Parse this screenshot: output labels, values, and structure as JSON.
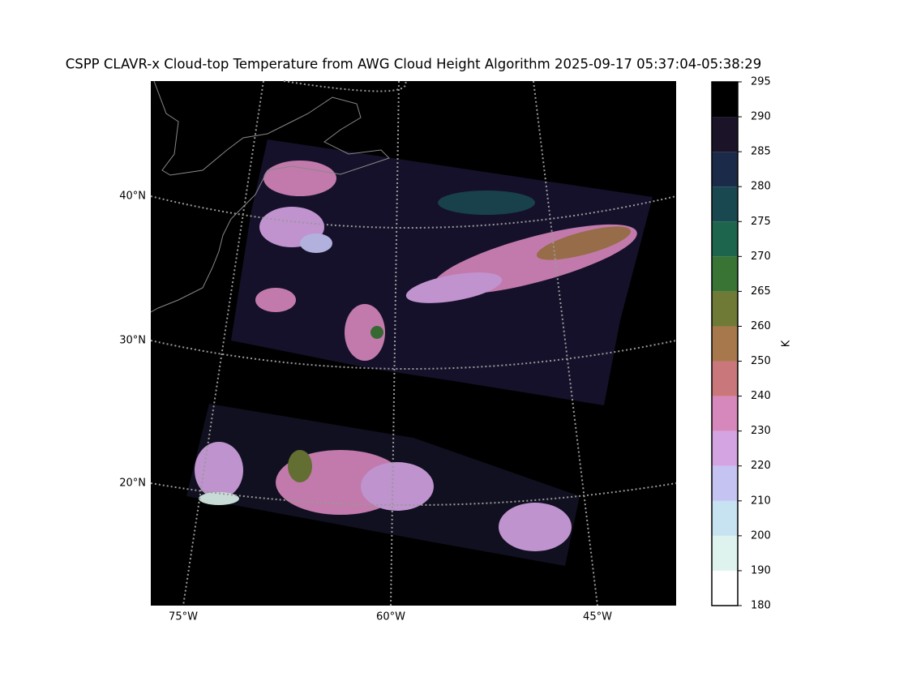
{
  "map": {
    "title": "CSPP CLAVR-x Cloud-top Temperature from AWG Cloud Height Algorithm 2025-09-17 05:37:04-05:38:29",
    "lat_labels": [
      "40°N",
      "30°N",
      "20°N"
    ],
    "lon_labels": [
      "75°W",
      "60°W",
      "45°W"
    ],
    "colorbar": {
      "label": "K",
      "boundaries": [
        180,
        190,
        200,
        210,
        220,
        230,
        240,
        250,
        260,
        265,
        270,
        275,
        280,
        285,
        290,
        295
      ],
      "colors": [
        "#ffffff",
        "#def3ed",
        "#c7e2f1",
        "#c4c3f1",
        "#d4a3e2",
        "#d687bc",
        "#c9777a",
        "#a6784c",
        "#6e7a35",
        "#3a7434",
        "#1d654c",
        "#194850",
        "#1c2a4a",
        "#1b1429",
        "#000000"
      ]
    }
  }
}
